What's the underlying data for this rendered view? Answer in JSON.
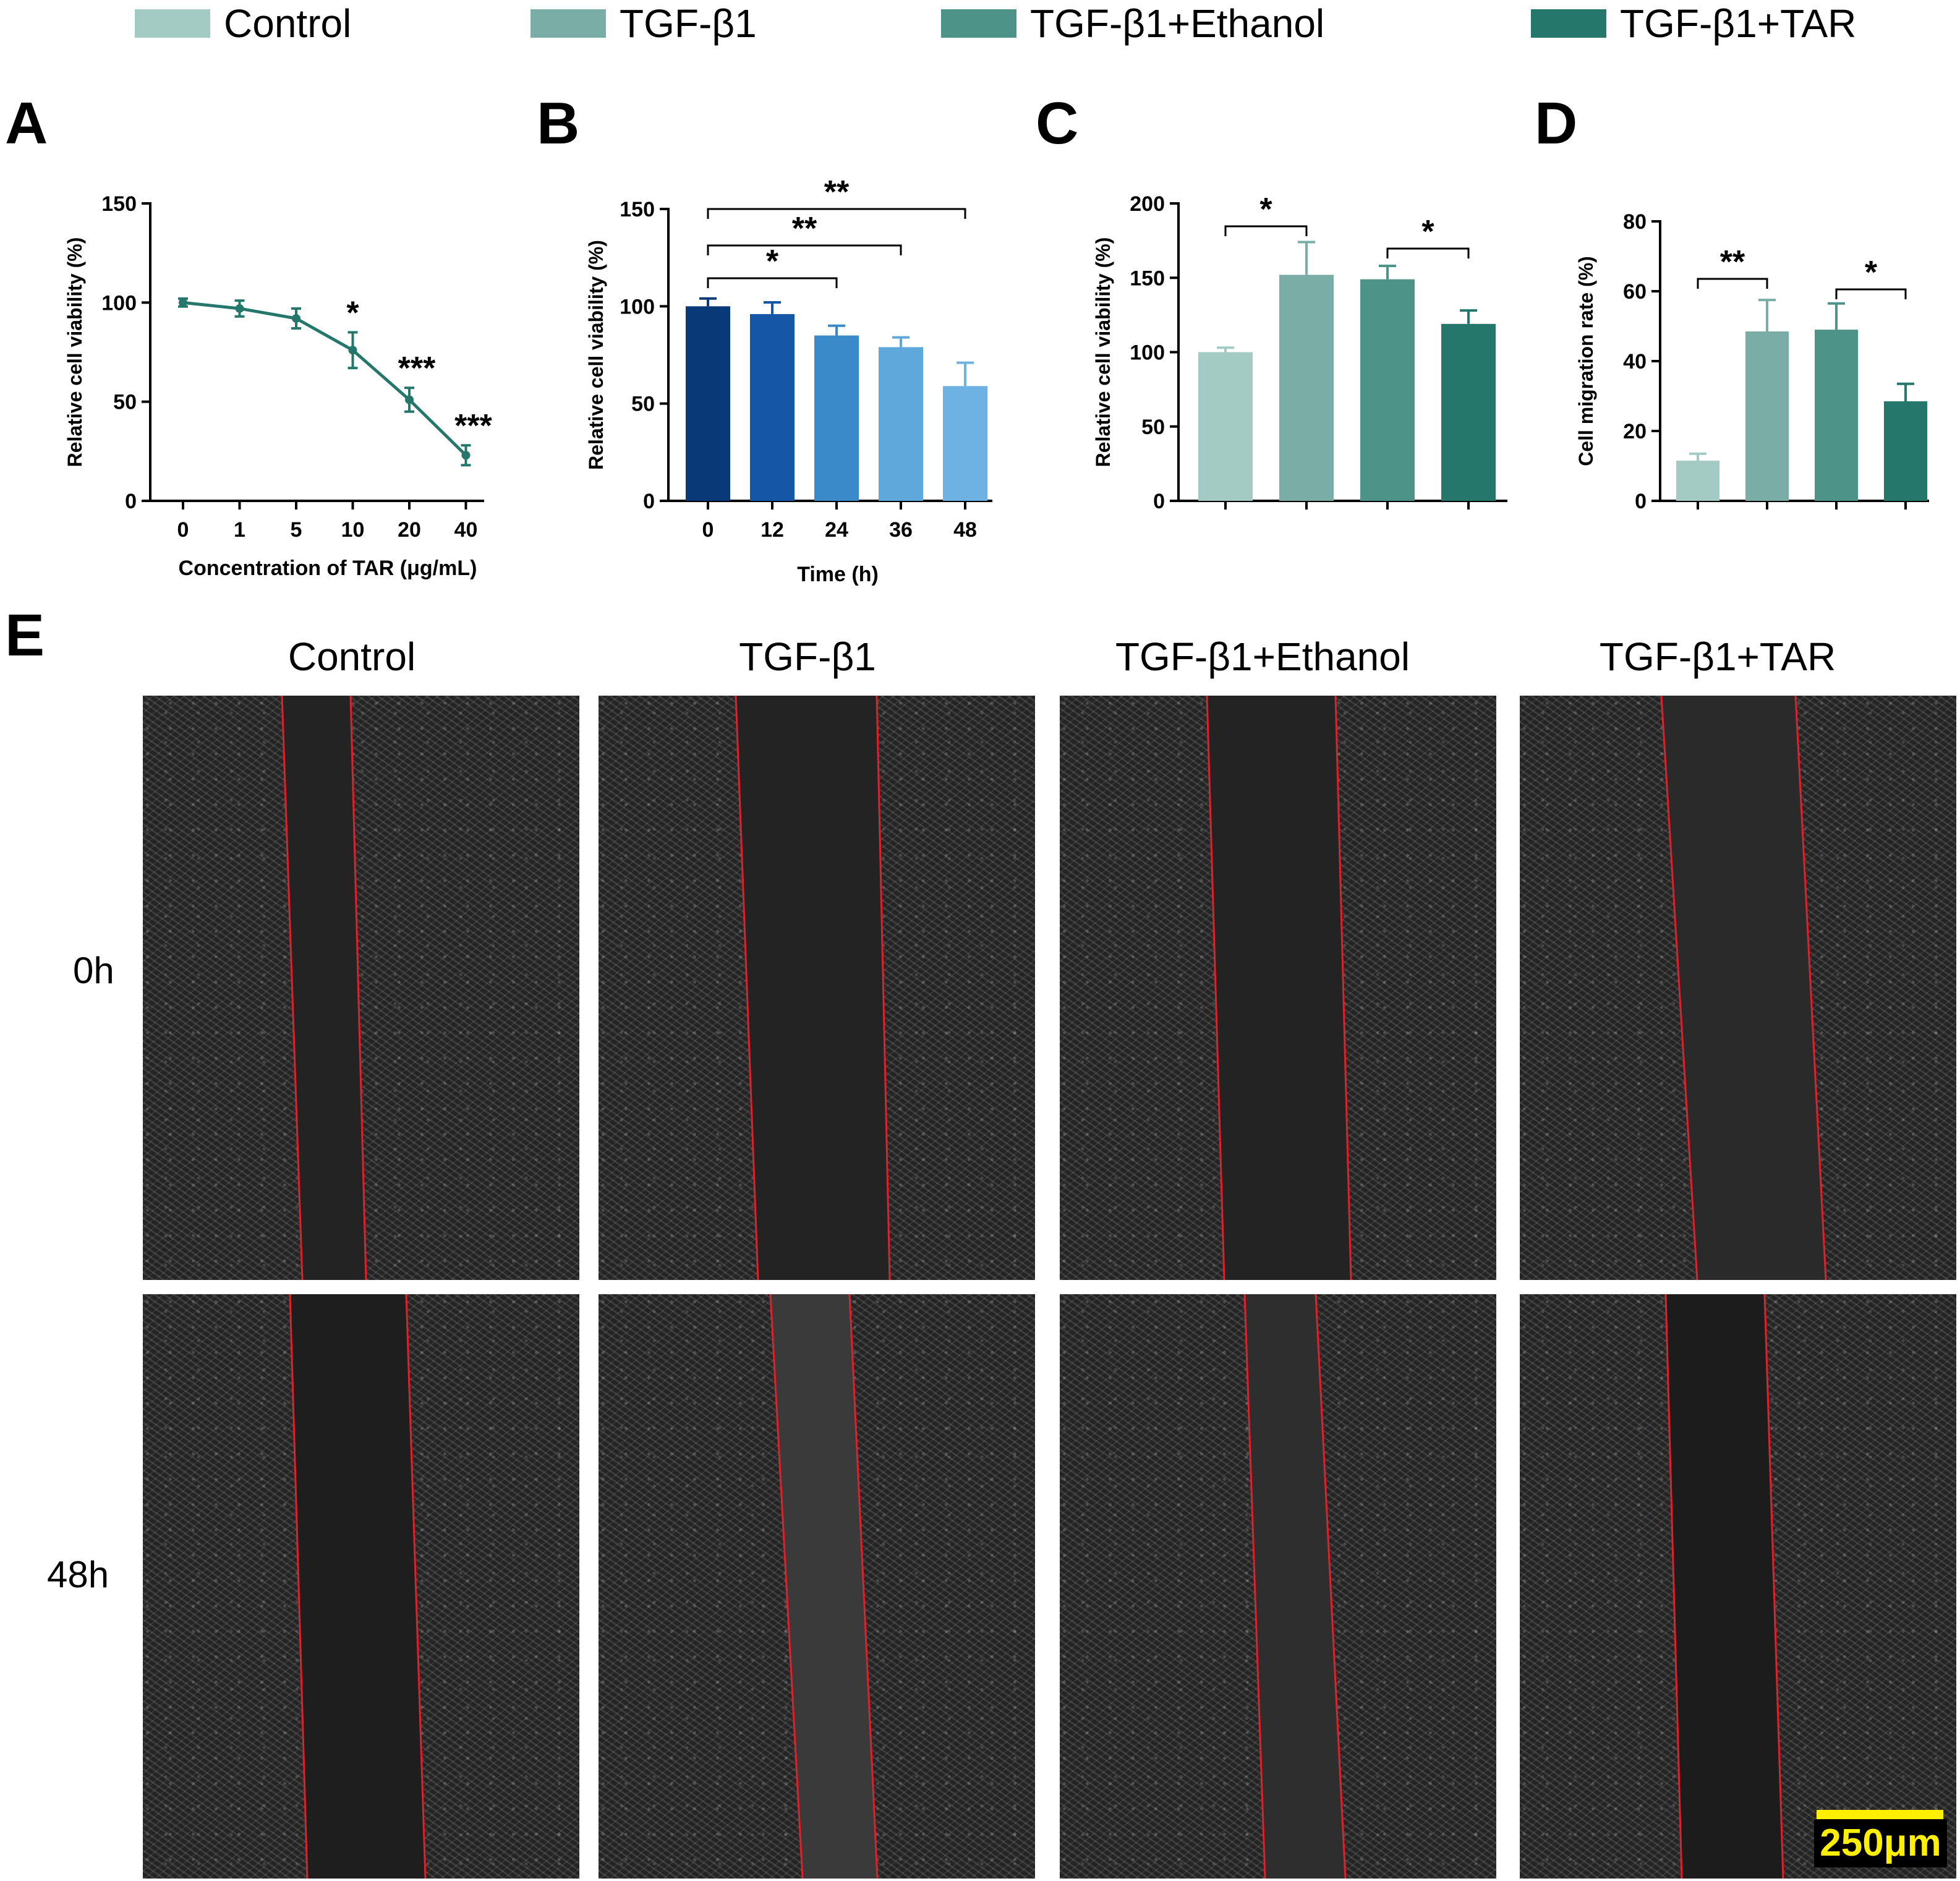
{
  "legend": {
    "items": [
      {
        "label": "Control",
        "color": "#a3cbc4"
      },
      {
        "label": "TGF-β1",
        "color": "#79ada5"
      },
      {
        "label": "TGF-β1+Ethanol",
        "color": "#4e9387"
      },
      {
        "label": "TGF-β1+TAR",
        "color": "#25776b"
      }
    ]
  },
  "panels": {
    "a": "A",
    "b": "B",
    "c": "C",
    "d": "D",
    "e": "E"
  },
  "chart_data": [
    {
      "id": "A",
      "type": "line",
      "x": [
        "0",
        "1",
        "5",
        "10",
        "20",
        "40"
      ],
      "series": [
        {
          "name": "Relative cell viability",
          "values": [
            100,
            97,
            92,
            76,
            51,
            23
          ],
          "errors": [
            2,
            4,
            5,
            9,
            6,
            5
          ],
          "color": "#25776b"
        }
      ],
      "significance": [
        "",
        "",
        "",
        "*",
        "***",
        "***"
      ],
      "xlabel": "Concentration of TAR (μg/mL)",
      "ylabel": "Relative cell viability (%)",
      "ylim": [
        0,
        150
      ],
      "yticks": [
        0,
        50,
        100,
        150
      ]
    },
    {
      "id": "B",
      "type": "bar",
      "categories": [
        "0",
        "12",
        "24",
        "36",
        "48"
      ],
      "values": [
        100,
        96,
        85,
        79,
        59
      ],
      "errors": [
        4,
        6,
        5,
        5,
        12
      ],
      "colors": [
        "#0a3977",
        "#1556a6",
        "#3a89c8",
        "#5ea8db",
        "#6db2e2"
      ],
      "brackets": [
        {
          "from": 0,
          "to": 2,
          "label": "*"
        },
        {
          "from": 0,
          "to": 3,
          "label": "**"
        },
        {
          "from": 0,
          "to": 4,
          "label": "**"
        }
      ],
      "xlabel": "Time (h)",
      "ylabel": "Relative cell viability (%)",
      "ylim": [
        0,
        150
      ],
      "yticks": [
        0,
        50,
        100,
        150
      ]
    },
    {
      "id": "C",
      "type": "bar",
      "categories": [
        "Control",
        "TGF-β1",
        "TGF-β1+Ethanol",
        "TGF-β1+TAR"
      ],
      "values": [
        100,
        152,
        149,
        119
      ],
      "errors": [
        3,
        22,
        9,
        9
      ],
      "colors": [
        "#a3cbc4",
        "#79ada5",
        "#4e9387",
        "#25776b"
      ],
      "brackets": [
        {
          "from": 0,
          "to": 1,
          "label": "*"
        },
        {
          "from": 2,
          "to": 3,
          "label": "*"
        }
      ],
      "xlabel": "",
      "ylabel": "Relative cell viability (%)",
      "ylim": [
        0,
        200
      ],
      "yticks": [
        0,
        50,
        100,
        150,
        200
      ]
    },
    {
      "id": "D",
      "type": "bar",
      "categories": [
        "Control",
        "TGF-β1",
        "TGF-β1+Ethanol",
        "TGF-β1+TAR"
      ],
      "values": [
        11.5,
        48.5,
        49,
        28.5
      ],
      "errors": [
        2,
        9,
        7.5,
        5
      ],
      "colors": [
        "#a3cbc4",
        "#79ada5",
        "#4e9387",
        "#25776b"
      ],
      "brackets": [
        {
          "from": 0,
          "to": 1,
          "label": "**"
        },
        {
          "from": 2,
          "to": 3,
          "label": "*"
        }
      ],
      "xlabel": "",
      "ylabel": "Cell migration rate (%)",
      "ylim": [
        0,
        80
      ],
      "yticks": [
        0,
        20,
        40,
        60,
        80
      ]
    }
  ],
  "panel_e": {
    "columns": [
      "Control",
      "TGF-β1",
      "TGF-β1+Ethanol",
      "TGF-β1+TAR"
    ],
    "rows": [
      "0h",
      "48h"
    ],
    "scale_bar_label": "250μm",
    "gap_line_color": "#e0202a"
  }
}
